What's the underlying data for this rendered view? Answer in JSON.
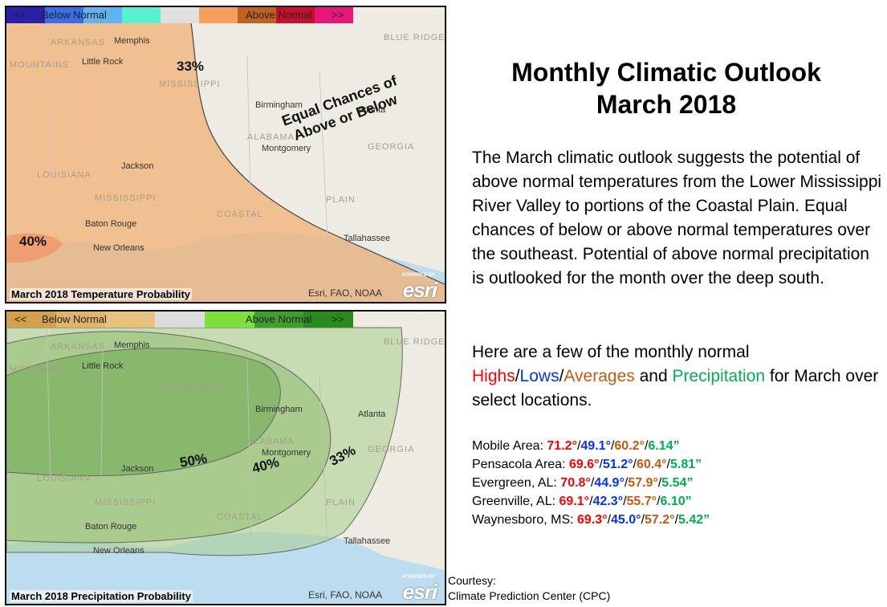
{
  "maps": {
    "temperature": {
      "caption": "March 2018 Temperature Probability",
      "credit": "Esri, FAO, NOAA",
      "legend": {
        "left_arrow": "<<",
        "below": "Below Normal",
        "above": "Above Normal",
        "right_arrow": ">>",
        "colors": [
          "#2a1fa8",
          "#3a6ee8",
          "#5fb3f0",
          "#56f2d0",
          "#e0e0e0",
          "#f5a05a",
          "#c0621d",
          "#c8102e",
          "#e5177a"
        ]
      },
      "probabilities": [
        "33%",
        "40%"
      ],
      "equal_chances": [
        "Equal Chances of",
        "Above or Below"
      ],
      "labels": [
        "ARKANSAS",
        "Memphis",
        "Little Rock",
        "MISSISSIPPI",
        "Birmingham",
        "Atlanta",
        "ALABAMA",
        "Montgomery",
        "GEORGIA",
        "Jackson",
        "LOUISIANA",
        "MISSISSIPPI",
        "Baton Rouge",
        "New Orleans",
        "Tallahassee",
        "COASTAL",
        "PLAIN",
        "BLUE RIDGE",
        "MOUNTAINS"
      ]
    },
    "precipitation": {
      "caption": "March 2018 Precipitation Probability",
      "credit": "Esri, FAO, NOAA",
      "legend": {
        "left_arrow": "<<",
        "below": "Below Normal",
        "above": "Above Normal",
        "right_arrow": ">>",
        "colors": [
          "#d4a04a",
          "#e0b46a",
          "#e6c27e",
          "#dcdcdc",
          "#7ddf3a",
          "#3ea02a",
          "#2a8a1e"
        ]
      },
      "probabilities": [
        "50%",
        "40%",
        "33%"
      ],
      "labels": [
        "ARKANSAS",
        "Memphis",
        "Little Rock",
        "MISSISSIPPI",
        "Birmingham",
        "Atlanta",
        "ALABAMA",
        "Montgomery",
        "GEORGIA",
        "Jackson",
        "LOUISIANA",
        "MISSISSIPPI",
        "Baton Rouge",
        "New Orleans",
        "Tallahassee",
        "COASTAL",
        "PLAIN",
        "BLUE RIDGE",
        "MOUNTAINS"
      ]
    }
  },
  "esri": {
    "powered": "POWERED BY",
    "name": "esri"
  },
  "title": [
    "Monthly Climatic Outlook",
    "March 2018"
  ],
  "summary": "The March climatic outlook suggests the potential of above normal temperatures from the Lower Mississippi River Valley to portions of the Coastal Plain. Equal chances of below or above normal temperatures over the southeast. Potential of above normal precipitation is outlooked for the month over the deep south.",
  "intro": {
    "pre": "Here are a few of the monthly normal",
    "highs": "Highs",
    "lows": "Lows",
    "averages": "Averages",
    "and": "and",
    "precip": "Precipitation",
    "post": "for March over select locations."
  },
  "stations": [
    {
      "name": "Mobile Area:",
      "high": "71.2°",
      "low": "49.1°",
      "avg": "60.2°",
      "precip": "6.14”"
    },
    {
      "name": "Pensacola Area:",
      "high": "69.6°",
      "low": "51.2°",
      "avg": "60.4°",
      "precip": "5.81”"
    },
    {
      "name": "Evergreen, AL:",
      "high": "70.8°",
      "low": "44.9°",
      "avg": "57.9°",
      "precip": "5.54”"
    },
    {
      "name": "Greenville, AL:",
      "high": "69.1°",
      "low": "42.3°",
      "avg": "55.7°",
      "precip": "6.10”"
    },
    {
      "name": "Waynesboro, MS:",
      "high": "69.3°",
      "low": "45.0°",
      "avg": "57.2°",
      "precip": "5.42”"
    }
  ],
  "courtesy": [
    "Courtesy:",
    "Climate Prediction Center (CPC)"
  ]
}
